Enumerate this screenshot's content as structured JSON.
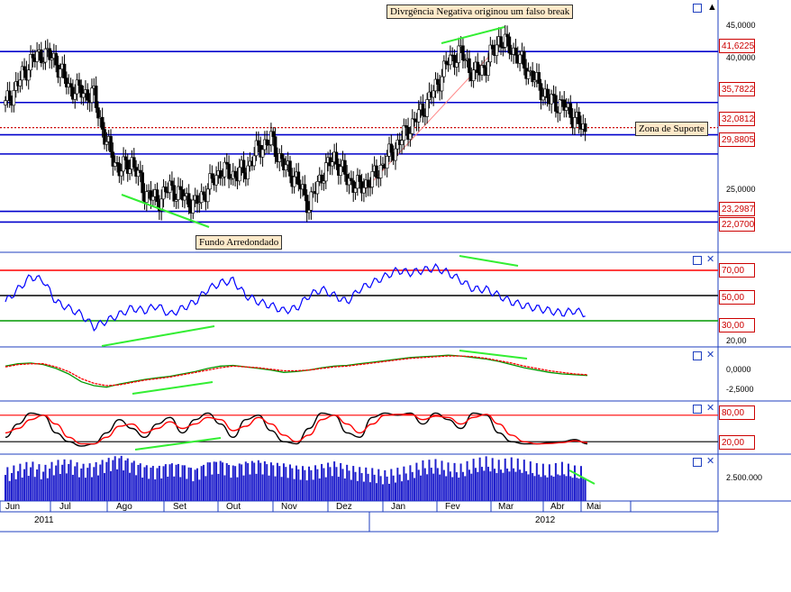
{
  "annotations": {
    "top": "Divrgência Negativa originou um falso break",
    "bottom": "Fundo Arredondado",
    "support": "Zona de Suporte"
  },
  "price_axis_labels": [
    "45,0000",
    "40,0000",
    "25,0000"
  ],
  "price_levels": [
    {
      "value": 41.6225,
      "label": "41,6225",
      "style": "blue"
    },
    {
      "value": 35.7822,
      "label": "35,7822",
      "style": "blue"
    },
    {
      "value": 32.9,
      "label": "",
      "style": "red-dotted"
    },
    {
      "value": 32.0812,
      "label": "32,0812",
      "style": "blue"
    },
    {
      "value": 29.8805,
      "label": "29,8805",
      "style": "blue"
    },
    {
      "value": 23.2987,
      "label": "23,2987",
      "style": "blue"
    },
    {
      "value": 22.07,
      "label": "22,0700",
      "style": "blue"
    }
  ],
  "rsi_levels": [
    {
      "value": 70,
      "label": "70,00",
      "color": "#ff0000"
    },
    {
      "value": 50,
      "label": "50,00",
      "color": "#000000"
    },
    {
      "value": 30,
      "label": "30,00",
      "color": "#009900"
    }
  ],
  "rsi_axis_label": "20,00",
  "macd_axis_labels": [
    "0,0000",
    "-2,5000"
  ],
  "stoch_levels": [
    {
      "value": 80,
      "label": "80,00",
      "color": "#ff0000"
    },
    {
      "value": 20,
      "label": "20,00",
      "color": "#000000"
    }
  ],
  "volume_axis_label": "2.500.000",
  "months": [
    "Jun",
    "Jul",
    "Ago",
    "Set",
    "Out",
    "Nov",
    "Dez",
    "Jan",
    "Fev",
    "Mar",
    "Abr",
    "Mai"
  ],
  "years": [
    "2011",
    "2012"
  ],
  "colors": {
    "blue": "#0000cc",
    "candle_up": "#ffffff",
    "candle_down": "#000000",
    "divergence": "#33ee33",
    "rsi": "#0000ff"
  },
  "chart_data": {
    "type": "line",
    "title": "",
    "price": {
      "months": [
        "Jun",
        "Jul",
        "Ago",
        "Set",
        "Out",
        "Nov",
        "Dez",
        "Jan",
        "Fev",
        "Mar",
        "Abr",
        "Mai"
      ],
      "close": [
        35.5,
        38.0,
        40.5,
        41.5,
        40.5,
        37.5,
        37.0,
        36.5,
        31.0,
        28.0,
        29.0,
        25.5,
        24.5,
        26.0,
        25.0,
        24.0,
        26.0,
        28.0,
        27.5,
        28.0,
        30.5,
        31.5,
        28.5,
        27.0,
        24.0,
        27.5,
        29.5,
        27.0,
        26.0,
        27.0,
        29.0,
        31.0,
        33.0,
        35.0,
        37.5,
        40.5,
        41.5,
        39.0,
        40.0,
        43.0,
        42.0,
        40.0,
        38.0,
        36.0,
        35.5,
        34.0,
        32.0
      ],
      "ylim": [
        21.5,
        46.5
      ]
    },
    "rsi": {
      "values": [
        45,
        55,
        65,
        62,
        45,
        40,
        35,
        25,
        30,
        35,
        40,
        38,
        42,
        35,
        40,
        45,
        55,
        60,
        62,
        50,
        45,
        42,
        38,
        40,
        50,
        55,
        50,
        45,
        55,
        60,
        65,
        70,
        68,
        70,
        72,
        68,
        62,
        55,
        55,
        50,
        45,
        42,
        40,
        38,
        36,
        38,
        35
      ],
      "levels": [
        70,
        50,
        30
      ],
      "ylim": [
        15,
        80
      ]
    },
    "macd": {
      "series": [
        {
          "values": [
            0.5,
            0.8,
            0.9,
            0.7,
            0.2,
            -0.5,
            -1.5,
            -2.0,
            -2.2,
            -1.8,
            -1.5,
            -1.2,
            -1.0,
            -0.8,
            -0.5,
            -0.2,
            0.2,
            0.5,
            0.6,
            0.4,
            0.2,
            0.0,
            -0.3,
            -0.2,
            0.0,
            0.3,
            0.5,
            0.6,
            0.8,
            1.0,
            1.2,
            1.4,
            1.6,
            1.7,
            1.8,
            1.9,
            1.8,
            1.6,
            1.4,
            1.1,
            0.7,
            0.3,
            0.0,
            -0.3,
            -0.5,
            -0.6,
            -0.7
          ]
        },
        {
          "values": [
            0.4,
            0.7,
            0.8,
            0.8,
            0.4,
            -0.2,
            -1.1,
            -1.7,
            -2.0,
            -1.9,
            -1.6,
            -1.3,
            -1.1,
            -0.9,
            -0.6,
            -0.3,
            0.0,
            0.3,
            0.5,
            0.4,
            0.3,
            0.1,
            -0.1,
            -0.1,
            0.0,
            0.2,
            0.4,
            0.5,
            0.7,
            0.9,
            1.1,
            1.3,
            1.5,
            1.6,
            1.7,
            1.8,
            1.8,
            1.7,
            1.5,
            1.2,
            0.9,
            0.5,
            0.2,
            -0.1,
            -0.3,
            -0.5,
            -0.6
          ]
        }
      ],
      "ylim": [
        -3.5,
        2.5
      ]
    },
    "stochastic": {
      "series": [
        {
          "values": [
            30,
            60,
            85,
            80,
            40,
            20,
            10,
            15,
            40,
            70,
            50,
            30,
            60,
            75,
            40,
            70,
            85,
            60,
            30,
            70,
            80,
            45,
            20,
            15,
            50,
            85,
            80,
            40,
            30,
            75,
            85,
            80,
            85,
            60,
            85,
            70,
            50,
            85,
            80,
            40,
            20,
            15,
            15,
            18,
            20,
            25,
            15
          ]
        },
        {
          "values": [
            40,
            50,
            70,
            80,
            60,
            30,
            15,
            15,
            30,
            55,
            60,
            40,
            50,
            65,
            50,
            60,
            75,
            70,
            45,
            55,
            75,
            60,
            35,
            20,
            35,
            70,
            80,
            60,
            40,
            60,
            80,
            82,
            82,
            70,
            78,
            75,
            60,
            75,
            82,
            60,
            35,
            20,
            15,
            16,
            18,
            22,
            18
          ]
        }
      ],
      "levels": [
        80,
        20
      ],
      "ylim": [
        0,
        100
      ]
    },
    "volume": {
      "values": [
        2.2,
        2.5,
        2.8,
        2.4,
        2.9,
        3.0,
        2.6,
        2.7,
        3.1,
        3.4,
        3.0,
        2.6,
        2.5,
        2.8,
        2.7,
        2.3,
        2.9,
        3.0,
        2.6,
        2.9,
        3.0,
        2.8,
        2.7,
        2.5,
        2.4,
        2.6,
        2.8,
        2.5,
        2.3,
        2.2,
        2.0,
        2.2,
        2.4,
        2.8,
        2.9,
        2.6,
        2.5,
        2.9,
        3.1,
        2.8,
        3.0,
        2.8,
        2.5,
        2.4,
        2.6,
        2.3,
        2.2
      ],
      "ylim": [
        0,
        3.8
      ]
    }
  }
}
